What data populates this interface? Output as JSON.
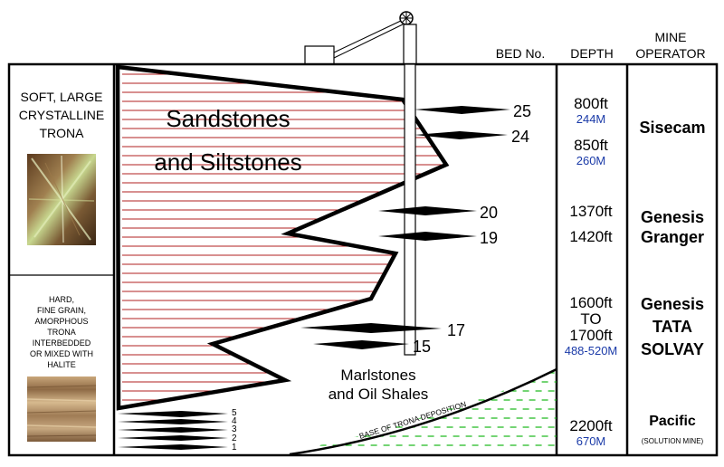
{
  "headers": {
    "bed_no": "BED No.",
    "depth": "DEPTH",
    "mine_line1": "MINE",
    "mine_line2": "OPERATOR"
  },
  "left_column": {
    "top_text": [
      "SOFT, LARGE",
      "CRYSTALLINE",
      "TRONA"
    ],
    "bottom_text": [
      "HARD,",
      "FINE GRAIN,",
      "AMORPHOUS",
      "TRONA",
      "INTERBEDDED",
      "OR MIXED WITH",
      "HALITE"
    ],
    "top_photo_icon": "crystalline-trona-photo",
    "bottom_photo_icon": "amorphous-trona-photo"
  },
  "strata": {
    "sandstone_line1": "Sandstones",
    "sandstone_line2": "and Siltstones",
    "marl_line1": "Marlstones",
    "marl_line2": "and Oil Shales",
    "base_label": "BASE OF TRONA DEPOSITION"
  },
  "beds": [
    {
      "label": "25"
    },
    {
      "label": "24"
    },
    {
      "label": "20"
    },
    {
      "label": "19"
    },
    {
      "label": "17"
    },
    {
      "label": "15"
    }
  ],
  "lower_beds": [
    "5",
    "4",
    "3",
    "2",
    "1"
  ],
  "depths": [
    {
      "ft": "800ft",
      "m": "244M"
    },
    {
      "ft": "850ft",
      "m": "260M"
    },
    {
      "ft": "1370ft",
      "m": ""
    },
    {
      "ft": "1420ft",
      "m": ""
    },
    {
      "ft": "1600ft",
      "to": "TO",
      "ft2": "1700ft",
      "m": "488-520M"
    },
    {
      "ft": "2200ft",
      "m": "670M"
    }
  ],
  "operators": [
    {
      "line1": "Sisecam",
      "line2": ""
    },
    {
      "line1": "Genesis",
      "line2": "Granger"
    },
    {
      "line1": "Genesis",
      "line2": "TATA",
      "line3": "SOLVAY"
    },
    {
      "line1": "Pacific",
      "line2": "(SOLUTION MINE)"
    }
  ],
  "colors": {
    "outline": "#000000",
    "sandstone_lines": "#b22222",
    "marl_dashes": "#22bb22",
    "metric_blue": "#1a3aa8"
  }
}
